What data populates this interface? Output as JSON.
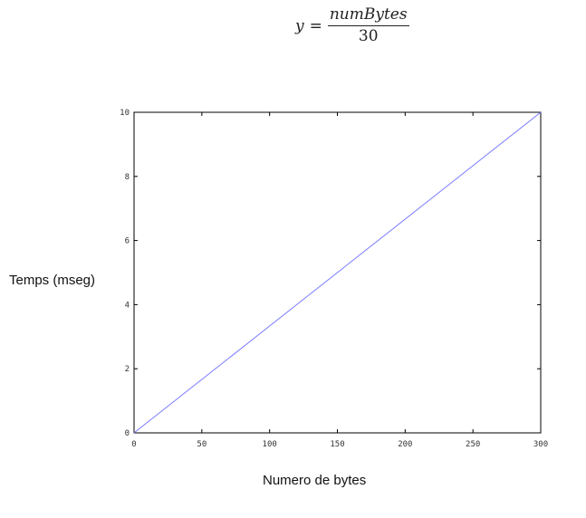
{
  "formula": {
    "lhs": "y",
    "equals": "=",
    "numerator": "numBytes",
    "denominator": "30"
  },
  "chart_data": {
    "type": "line",
    "xlabel": "Numero de bytes",
    "ylabel": "Temps (mseg)",
    "xlim": [
      0,
      300
    ],
    "ylim": [
      0,
      10
    ],
    "xticks": [
      0,
      50,
      100,
      150,
      200,
      250,
      300
    ],
    "yticks": [
      0,
      2,
      4,
      6,
      8,
      10
    ],
    "grid": false,
    "series": [
      {
        "x": [
          0,
          300
        ],
        "y": [
          0,
          10
        ],
        "color": "#7b7bff"
      }
    ]
  }
}
